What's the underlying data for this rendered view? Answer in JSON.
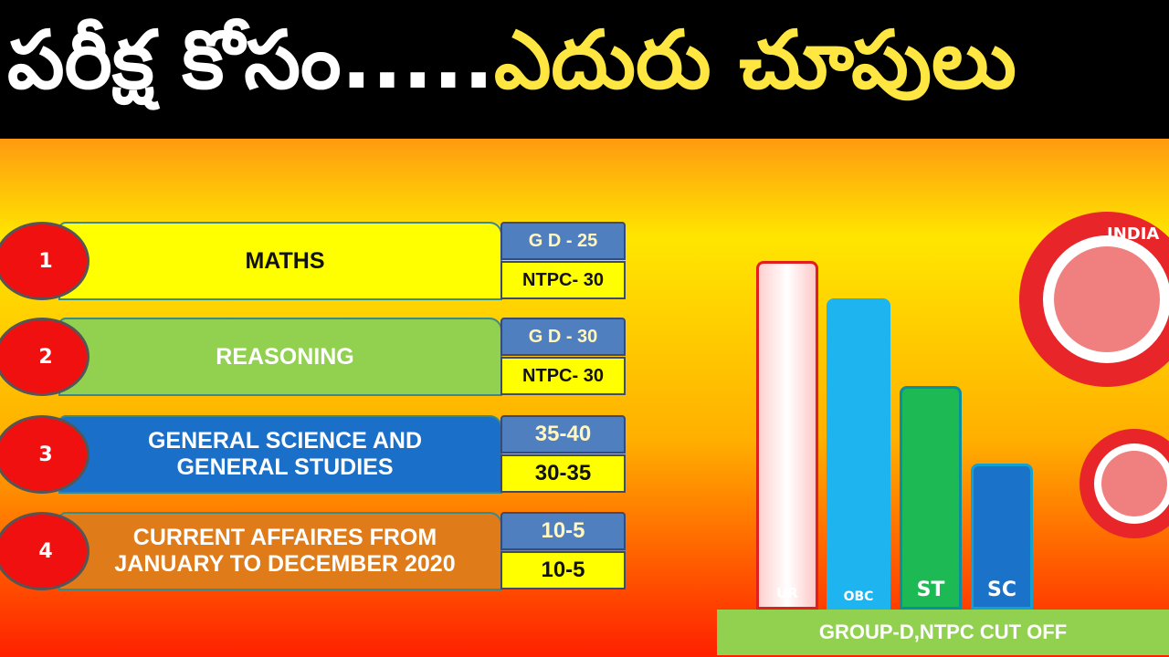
{
  "header": {
    "title_white": "పరీక్ష కోసం.....",
    "title_yellow": "ఎదురు చూపులు"
  },
  "subjects": [
    {
      "number": "1",
      "name": "MATHS",
      "marks": [
        "G D -  25",
        "NTPC- 30"
      ]
    },
    {
      "number": "2",
      "name": "REASONING",
      "marks": [
        "G D - 30",
        "NTPC- 30"
      ]
    },
    {
      "number": "3",
      "name": "GENERAL SCIENCE AND GENERAL STUDIES",
      "marks": [
        "35-40",
        "30-35"
      ]
    },
    {
      "number": "4",
      "name": "CURRENT AFFAIRES FROM JANUARY TO DECEMBER 2020",
      "marks": [
        "10-5",
        "10-5"
      ]
    }
  ],
  "cutoff_chart": {
    "bars": [
      "UR",
      "OBC",
      "ST",
      "SC"
    ],
    "caption": "GROUP-D,NTPC  CUT OFF"
  },
  "logo": {
    "text": "INDIA"
  }
}
